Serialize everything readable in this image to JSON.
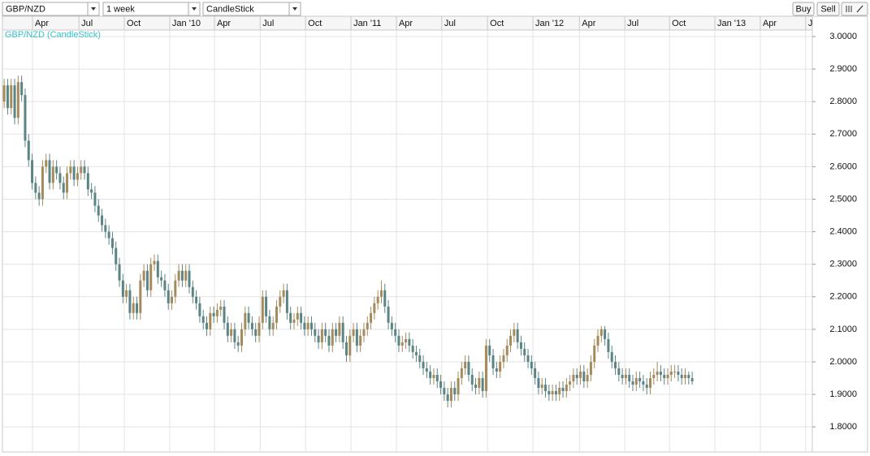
{
  "toolbar": {
    "symbol": "GBP/NZD",
    "interval": "1 week",
    "chart_style": "CandleStick",
    "buttons": [
      "Buy",
      "Sell"
    ]
  },
  "chart_data": {
    "type": "candlestick",
    "series_label": "GBP/NZD (CandleStick)",
    "up_color": "#a58b5c",
    "down_color": "#5b8584",
    "grid": true,
    "xlim": [
      -0.5,
      231.4
    ],
    "xticks": [
      {
        "value": 8.1,
        "label": "Apr"
      },
      {
        "value": 21.4,
        "label": "Jul"
      },
      {
        "value": 34.4,
        "label": "Oct"
      },
      {
        "value": 47.4,
        "label": "Jan '10"
      },
      {
        "value": 60.2,
        "label": "Apr"
      },
      {
        "value": 73.3,
        "label": "Jul"
      },
      {
        "value": 86.3,
        "label": "Oct"
      },
      {
        "value": 99.3,
        "label": "Jan '11"
      },
      {
        "value": 112.3,
        "label": "Apr"
      },
      {
        "value": 125.3,
        "label": "Jul"
      },
      {
        "value": 138.4,
        "label": "Oct"
      },
      {
        "value": 151.4,
        "label": "Jan '12"
      },
      {
        "value": 164.7,
        "label": "Apr"
      },
      {
        "value": 177.7,
        "label": "Jul"
      },
      {
        "value": 190.5,
        "label": "Oct"
      },
      {
        "value": 203.5,
        "label": "Jan '13"
      },
      {
        "value": 216.5,
        "label": "Apr"
      },
      {
        "value": 229.5,
        "label": "Jul"
      }
    ],
    "ylim": [
      1.723,
      3.02
    ],
    "yticks": [
      {
        "value": 1.8,
        "label": "1.8000"
      },
      {
        "value": 1.9,
        "label": "1.9000"
      },
      {
        "value": 2.0,
        "label": "2.0000"
      },
      {
        "value": 2.1,
        "label": "2.1000"
      },
      {
        "value": 2.2,
        "label": "2.2000"
      },
      {
        "value": 2.3,
        "label": "2.3000"
      },
      {
        "value": 2.4,
        "label": "2.4000"
      },
      {
        "value": 2.5,
        "label": "2.5000"
      },
      {
        "value": 2.6,
        "label": "2.6000"
      },
      {
        "value": 2.7,
        "label": "2.7000"
      },
      {
        "value": 2.8,
        "label": "2.8000"
      },
      {
        "value": 2.9,
        "label": "2.9000"
      },
      {
        "value": 3.0,
        "label": "3.0000"
      }
    ],
    "ohlc": [
      [
        2.8,
        2.87,
        2.78,
        2.85
      ],
      [
        2.85,
        2.87,
        2.76,
        2.78
      ],
      [
        2.78,
        2.87,
        2.76,
        2.85
      ],
      [
        2.85,
        2.87,
        2.73,
        2.75
      ],
      [
        2.75,
        2.88,
        2.73,
        2.86
      ],
      [
        2.86,
        2.88,
        2.8,
        2.82
      ],
      [
        2.82,
        2.84,
        2.66,
        2.68
      ],
      [
        2.68,
        2.7,
        2.6,
        2.62
      ],
      [
        2.62,
        2.64,
        2.53,
        2.55
      ],
      [
        2.55,
        2.57,
        2.5,
        2.52
      ],
      [
        2.52,
        2.54,
        2.48,
        2.5
      ],
      [
        2.5,
        2.62,
        2.48,
        2.6
      ],
      [
        2.6,
        2.64,
        2.58,
        2.62
      ],
      [
        2.62,
        2.64,
        2.53,
        2.55
      ],
      [
        2.55,
        2.62,
        2.53,
        2.6
      ],
      [
        2.6,
        2.62,
        2.56,
        2.58
      ],
      [
        2.58,
        2.6,
        2.53,
        2.55
      ],
      [
        2.55,
        2.57,
        2.5,
        2.52
      ],
      [
        2.52,
        2.6,
        2.5,
        2.58
      ],
      [
        2.58,
        2.62,
        2.56,
        2.6
      ],
      [
        2.6,
        2.62,
        2.54,
        2.56
      ],
      [
        2.56,
        2.6,
        2.54,
        2.58
      ],
      [
        2.58,
        2.62,
        2.56,
        2.6
      ],
      [
        2.6,
        2.62,
        2.56,
        2.58
      ],
      [
        2.58,
        2.6,
        2.51,
        2.53
      ],
      [
        2.53,
        2.55,
        2.5,
        2.52
      ],
      [
        2.52,
        2.54,
        2.46,
        2.48
      ],
      [
        2.48,
        2.5,
        2.43,
        2.45
      ],
      [
        2.45,
        2.47,
        2.4,
        2.42
      ],
      [
        2.42,
        2.44,
        2.38,
        2.4
      ],
      [
        2.4,
        2.42,
        2.36,
        2.38
      ],
      [
        2.38,
        2.4,
        2.33,
        2.35
      ],
      [
        2.35,
        2.37,
        2.28,
        2.3
      ],
      [
        2.3,
        2.32,
        2.23,
        2.25
      ],
      [
        2.25,
        2.27,
        2.18,
        2.2
      ],
      [
        2.2,
        2.24,
        2.18,
        2.22
      ],
      [
        2.22,
        2.24,
        2.13,
        2.15
      ],
      [
        2.15,
        2.2,
        2.13,
        2.18
      ],
      [
        2.18,
        2.2,
        2.13,
        2.15
      ],
      [
        2.15,
        2.27,
        2.13,
        2.25
      ],
      [
        2.25,
        2.3,
        2.23,
        2.28
      ],
      [
        2.28,
        2.3,
        2.2,
        2.22
      ],
      [
        2.22,
        2.32,
        2.2,
        2.3
      ],
      [
        2.3,
        2.33,
        2.28,
        2.31
      ],
      [
        2.31,
        2.33,
        2.24,
        2.26
      ],
      [
        2.26,
        2.28,
        2.23,
        2.25
      ],
      [
        2.25,
        2.27,
        2.2,
        2.22
      ],
      [
        2.22,
        2.24,
        2.16,
        2.18
      ],
      [
        2.18,
        2.22,
        2.16,
        2.2
      ],
      [
        2.2,
        2.27,
        2.18,
        2.25
      ],
      [
        2.25,
        2.3,
        2.23,
        2.28
      ],
      [
        2.28,
        2.3,
        2.23,
        2.25
      ],
      [
        2.25,
        2.3,
        2.23,
        2.28
      ],
      [
        2.28,
        2.3,
        2.21,
        2.23
      ],
      [
        2.23,
        2.25,
        2.18,
        2.2
      ],
      [
        2.2,
        2.22,
        2.16,
        2.18
      ],
      [
        2.18,
        2.2,
        2.12,
        2.14
      ],
      [
        2.14,
        2.16,
        2.1,
        2.12
      ],
      [
        2.12,
        2.14,
        2.08,
        2.1
      ],
      [
        2.1,
        2.17,
        2.08,
        2.15
      ],
      [
        2.15,
        2.17,
        2.12,
        2.14
      ],
      [
        2.14,
        2.18,
        2.12,
        2.16
      ],
      [
        2.16,
        2.19,
        2.14,
        2.17
      ],
      [
        2.17,
        2.19,
        2.1,
        2.12
      ],
      [
        2.12,
        2.14,
        2.06,
        2.08
      ],
      [
        2.08,
        2.12,
        2.06,
        2.1
      ],
      [
        2.1,
        2.12,
        2.04,
        2.06
      ],
      [
        2.06,
        2.08,
        2.03,
        2.05
      ],
      [
        2.05,
        2.12,
        2.03,
        2.1
      ],
      [
        2.1,
        2.17,
        2.08,
        2.15
      ],
      [
        2.15,
        2.17,
        2.1,
        2.12
      ],
      [
        2.12,
        2.14,
        2.08,
        2.1
      ],
      [
        2.1,
        2.12,
        2.06,
        2.08
      ],
      [
        2.08,
        2.14,
        2.06,
        2.12
      ],
      [
        2.12,
        2.22,
        2.1,
        2.2
      ],
      [
        2.2,
        2.22,
        2.12,
        2.14
      ],
      [
        2.14,
        2.16,
        2.08,
        2.1
      ],
      [
        2.1,
        2.14,
        2.08,
        2.12
      ],
      [
        2.12,
        2.19,
        2.1,
        2.17
      ],
      [
        2.17,
        2.22,
        2.15,
        2.2
      ],
      [
        2.2,
        2.24,
        2.18,
        2.22
      ],
      [
        2.22,
        2.24,
        2.13,
        2.15
      ],
      [
        2.15,
        2.17,
        2.1,
        2.12
      ],
      [
        2.12,
        2.15,
        2.1,
        2.13
      ],
      [
        2.13,
        2.17,
        2.11,
        2.15
      ],
      [
        2.15,
        2.17,
        2.1,
        2.12
      ],
      [
        2.12,
        2.14,
        2.08,
        2.1
      ],
      [
        2.1,
        2.14,
        2.08,
        2.12
      ],
      [
        2.12,
        2.14,
        2.08,
        2.1
      ],
      [
        2.1,
        2.12,
        2.06,
        2.08
      ],
      [
        2.08,
        2.1,
        2.04,
        2.06
      ],
      [
        2.06,
        2.12,
        2.04,
        2.1
      ],
      [
        2.1,
        2.12,
        2.06,
        2.08
      ],
      [
        2.08,
        2.1,
        2.03,
        2.05
      ],
      [
        2.05,
        2.12,
        2.03,
        2.1
      ],
      [
        2.1,
        2.12,
        2.06,
        2.08
      ],
      [
        2.08,
        2.14,
        2.06,
        2.12
      ],
      [
        2.12,
        2.14,
        2.04,
        2.06
      ],
      [
        2.06,
        2.08,
        2.0,
        2.02
      ],
      [
        2.02,
        2.1,
        2.0,
        2.08
      ],
      [
        2.08,
        2.12,
        2.06,
        2.1
      ],
      [
        2.1,
        2.12,
        2.03,
        2.05
      ],
      [
        2.05,
        2.1,
        2.03,
        2.08
      ],
      [
        2.08,
        2.12,
        2.06,
        2.1
      ],
      [
        2.1,
        2.14,
        2.08,
        2.12
      ],
      [
        2.12,
        2.17,
        2.1,
        2.15
      ],
      [
        2.15,
        2.2,
        2.13,
        2.18
      ],
      [
        2.18,
        2.22,
        2.16,
        2.2
      ],
      [
        2.2,
        2.25,
        2.18,
        2.22
      ],
      [
        2.22,
        2.24,
        2.15,
        2.17
      ],
      [
        2.17,
        2.19,
        2.1,
        2.12
      ],
      [
        2.12,
        2.14,
        2.08,
        2.1
      ],
      [
        2.1,
        2.12,
        2.06,
        2.08
      ],
      [
        2.08,
        2.1,
        2.03,
        2.05
      ],
      [
        2.05,
        2.08,
        2.03,
        2.06
      ],
      [
        2.06,
        2.09,
        2.04,
        2.07
      ],
      [
        2.07,
        2.09,
        2.03,
        2.05
      ],
      [
        2.05,
        2.07,
        2.01,
        2.03
      ],
      [
        2.03,
        2.05,
        2.0,
        2.02
      ],
      [
        2.02,
        2.04,
        1.98,
        2.0
      ],
      [
        2.0,
        2.02,
        1.96,
        1.98
      ],
      [
        1.98,
        2.0,
        1.95,
        1.97
      ],
      [
        1.97,
        1.99,
        1.93,
        1.95
      ],
      [
        1.95,
        1.98,
        1.93,
        1.96
      ],
      [
        1.96,
        1.98,
        1.92,
        1.94
      ],
      [
        1.94,
        1.96,
        1.9,
        1.92
      ],
      [
        1.92,
        1.94,
        1.88,
        1.9
      ],
      [
        1.9,
        1.92,
        1.86,
        1.88
      ],
      [
        1.88,
        1.94,
        1.86,
        1.92
      ],
      [
        1.92,
        1.94,
        1.88,
        1.9
      ],
      [
        1.9,
        1.97,
        1.88,
        1.95
      ],
      [
        1.95,
        2.0,
        1.93,
        1.98
      ],
      [
        1.98,
        2.02,
        1.96,
        2.0
      ],
      [
        2.0,
        2.02,
        1.94,
        1.96
      ],
      [
        1.96,
        1.98,
        1.91,
        1.93
      ],
      [
        1.93,
        1.95,
        1.9,
        1.92
      ],
      [
        1.92,
        1.97,
        1.9,
        1.95
      ],
      [
        1.95,
        1.97,
        1.89,
        1.91
      ],
      [
        1.91,
        2.07,
        1.89,
        2.05
      ],
      [
        2.05,
        2.07,
        2.0,
        2.02
      ],
      [
        2.02,
        2.04,
        1.96,
        1.98
      ],
      [
        1.98,
        2.0,
        1.95,
        1.97
      ],
      [
        1.97,
        2.02,
        1.95,
        2.0
      ],
      [
        2.0,
        2.04,
        1.98,
        2.02
      ],
      [
        2.02,
        2.07,
        2.0,
        2.05
      ],
      [
        2.05,
        2.1,
        2.03,
        2.08
      ],
      [
        2.08,
        2.12,
        2.06,
        2.1
      ],
      [
        2.1,
        2.12,
        2.04,
        2.06
      ],
      [
        2.06,
        2.08,
        2.02,
        2.04
      ],
      [
        2.04,
        2.06,
        2.0,
        2.02
      ],
      [
        2.02,
        2.04,
        1.98,
        2.0
      ],
      [
        2.0,
        2.02,
        1.96,
        1.98
      ],
      [
        1.98,
        2.0,
        1.93,
        1.95
      ],
      [
        1.95,
        1.97,
        1.9,
        1.92
      ],
      [
        1.92,
        1.95,
        1.9,
        1.93
      ],
      [
        1.93,
        1.95,
        1.89,
        1.91
      ],
      [
        1.91,
        1.93,
        1.88,
        1.9
      ],
      [
        1.9,
        1.93,
        1.88,
        1.91
      ],
      [
        1.91,
        1.93,
        1.88,
        1.9
      ],
      [
        1.9,
        1.94,
        1.88,
        1.92
      ],
      [
        1.92,
        1.94,
        1.89,
        1.91
      ],
      [
        1.91,
        1.95,
        1.89,
        1.93
      ],
      [
        1.93,
        1.96,
        1.91,
        1.94
      ],
      [
        1.94,
        1.98,
        1.92,
        1.96
      ],
      [
        1.96,
        1.98,
        1.93,
        1.95
      ],
      [
        1.95,
        1.99,
        1.93,
        1.97
      ],
      [
        1.97,
        1.99,
        1.92,
        1.94
      ],
      [
        1.94,
        1.98,
        1.92,
        1.96
      ],
      [
        1.96,
        2.02,
        1.94,
        2.0
      ],
      [
        2.0,
        2.07,
        1.98,
        2.05
      ],
      [
        2.05,
        2.1,
        2.03,
        2.08
      ],
      [
        2.08,
        2.11,
        2.06,
        2.1
      ],
      [
        2.1,
        2.11,
        2.05,
        2.07
      ],
      [
        2.07,
        2.09,
        2.01,
        2.03
      ],
      [
        2.03,
        2.05,
        1.98,
        2.0
      ],
      [
        2.0,
        2.02,
        1.96,
        1.98
      ],
      [
        1.98,
        2.0,
        1.94,
        1.96
      ],
      [
        1.96,
        1.98,
        1.93,
        1.95
      ],
      [
        1.95,
        1.98,
        1.93,
        1.96
      ],
      [
        1.96,
        1.98,
        1.92,
        1.94
      ],
      [
        1.94,
        1.96,
        1.91,
        1.93
      ],
      [
        1.93,
        1.97,
        1.91,
        1.95
      ],
      [
        1.95,
        1.97,
        1.92,
        1.94
      ],
      [
        1.94,
        1.96,
        1.91,
        1.93
      ],
      [
        1.93,
        1.95,
        1.9,
        1.92
      ],
      [
        1.92,
        1.97,
        1.9,
        1.95
      ],
      [
        1.95,
        1.98,
        1.93,
        1.96
      ],
      [
        1.96,
        2.0,
        1.94,
        1.97
      ],
      [
        1.97,
        1.99,
        1.94,
        1.96
      ],
      [
        1.96,
        1.98,
        1.93,
        1.95
      ],
      [
        1.95,
        1.98,
        1.93,
        1.96
      ],
      [
        1.96,
        1.99,
        1.94,
        1.97
      ],
      [
        1.97,
        1.99,
        1.95,
        1.97
      ],
      [
        1.97,
        1.99,
        1.94,
        1.96
      ],
      [
        1.96,
        1.98,
        1.93,
        1.95
      ],
      [
        1.95,
        1.98,
        1.93,
        1.96
      ],
      [
        1.96,
        1.97,
        1.93,
        1.95
      ],
      [
        1.95,
        1.97,
        1.93,
        1.94
      ]
    ]
  }
}
